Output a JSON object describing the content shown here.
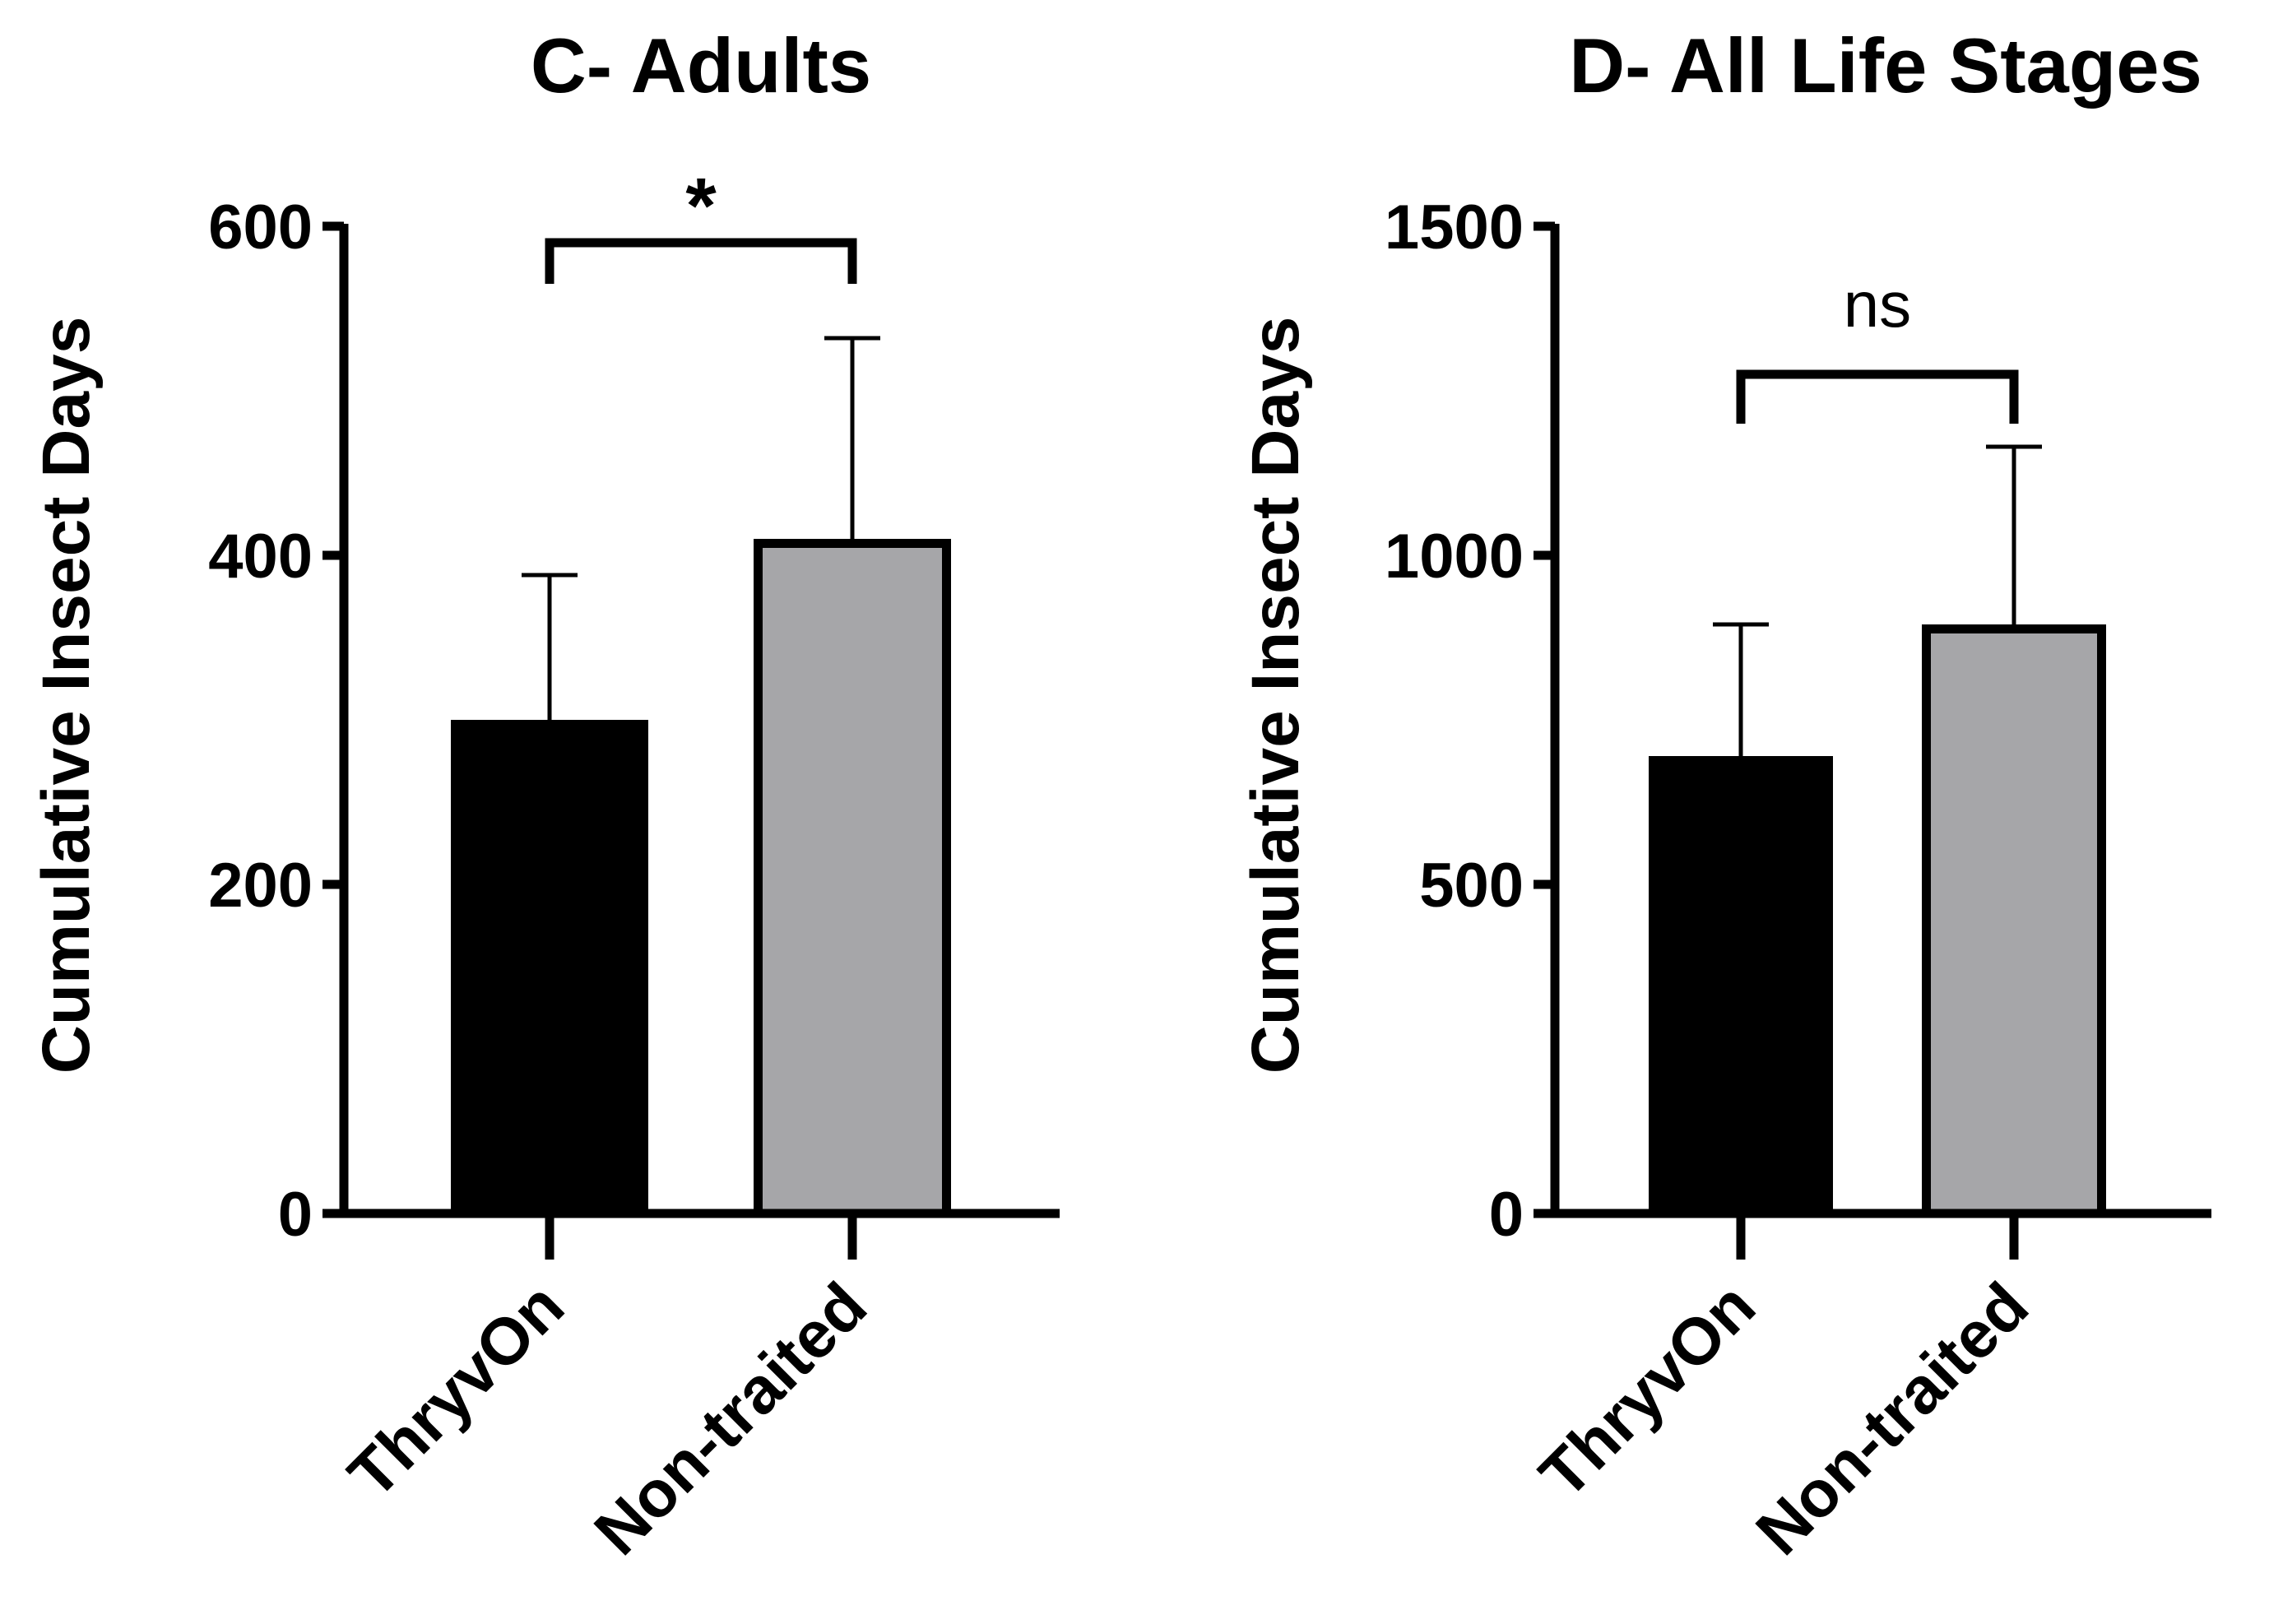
{
  "chart_data": [
    {
      "type": "bar",
      "title": "C- Adults",
      "ylabel": "Cumulative Insect Days",
      "xlabel": "",
      "categories": [
        "ThryvOn",
        "Non-traited"
      ],
      "values": [
        300,
        410
      ],
      "error_upper": [
        388,
        532
      ],
      "bar_colors": [
        "#000000",
        "#a6a6a9"
      ],
      "ylim": [
        0,
        600
      ],
      "yticks": [
        0,
        200,
        400,
        600
      ],
      "ytick_labels": [
        "0",
        "200",
        "400",
        "600"
      ],
      "significance": {
        "label": "*",
        "between": [
          "ThryvOn",
          "Non-traited"
        ],
        "y": 590,
        "drop_to": 565
      },
      "grid": false
    },
    {
      "type": "bar",
      "title": "D- All Life Stages",
      "ylabel": "Cumulative Insect Days",
      "xlabel": "",
      "categories": [
        "ThryvOn",
        "Non-traited"
      ],
      "values": [
        695,
        895
      ],
      "error_upper": [
        895,
        1165
      ],
      "bar_colors": [
        "#000000",
        "#a6a6a9"
      ],
      "ylim": [
        0,
        1500
      ],
      "yticks": [
        0,
        500,
        1000,
        1500
      ],
      "ytick_labels": [
        "0",
        "500",
        "1000",
        "1500"
      ],
      "significance": {
        "label": "ns",
        "between": [
          "ThryvOn",
          "Non-traited"
        ],
        "y": 1275,
        "drop_to": 1200
      },
      "grid": false
    }
  ]
}
